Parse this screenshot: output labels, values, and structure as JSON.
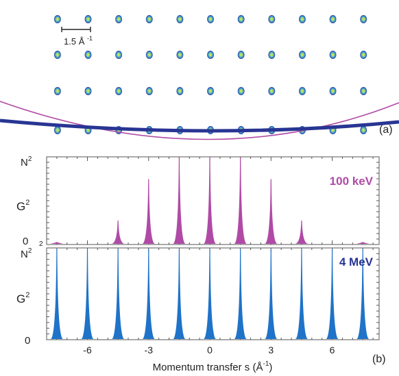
{
  "figure": {
    "panel_a_label": "(a)",
    "panel_b_label": "(b)",
    "scale_bar_number": "1.5",
    "scale_bar_unit": "Å",
    "scale_bar_exponent": "-1",
    "colors": {
      "spot_outer": "#2b3a9c",
      "spot_mid": "#4aa8d8",
      "spot_core": "#e0e040",
      "sphere_100keV": "#b04aa6",
      "sphere_4MeV": "#283593",
      "peaks_100keV": "#b04aa6",
      "peaks_4MeV": "#1f73c8"
    }
  },
  "chart_data": {
    "type": "area",
    "xlabel_main": "Momentum transfer s (",
    "xlabel_unit": "Å",
    "xlabel_exponent": "-1",
    "xlabel_close": ")",
    "x_ticks": [
      -6,
      -3,
      0,
      3,
      6
    ],
    "x_tick_labels": [
      "-6",
      "-3",
      "0",
      "3",
      "6"
    ],
    "xlim": [
      -8.0,
      8.3
    ],
    "peak_positions": [
      -7.5,
      -6,
      -4.5,
      -3,
      -1.5,
      0,
      1.5,
      3,
      4.5,
      6,
      7.5
    ],
    "y_ticks": [
      "N",
      "0"
    ],
    "y_tick_superscript": "2",
    "ylabel": "G",
    "ylabel_superscript": "2",
    "series": [
      {
        "name": "100 keV",
        "relative_heights": [
          0.02,
          0.0,
          0.27,
          0.75,
          1.0,
          1.0,
          1.0,
          0.75,
          0.27,
          0.0,
          0.02
        ]
      },
      {
        "name": "4 MeV",
        "relative_heights": [
          1.0,
          1.0,
          1.0,
          1.0,
          1.0,
          1.0,
          1.0,
          1.0,
          1.0,
          1.0,
          1.0
        ]
      }
    ]
  }
}
